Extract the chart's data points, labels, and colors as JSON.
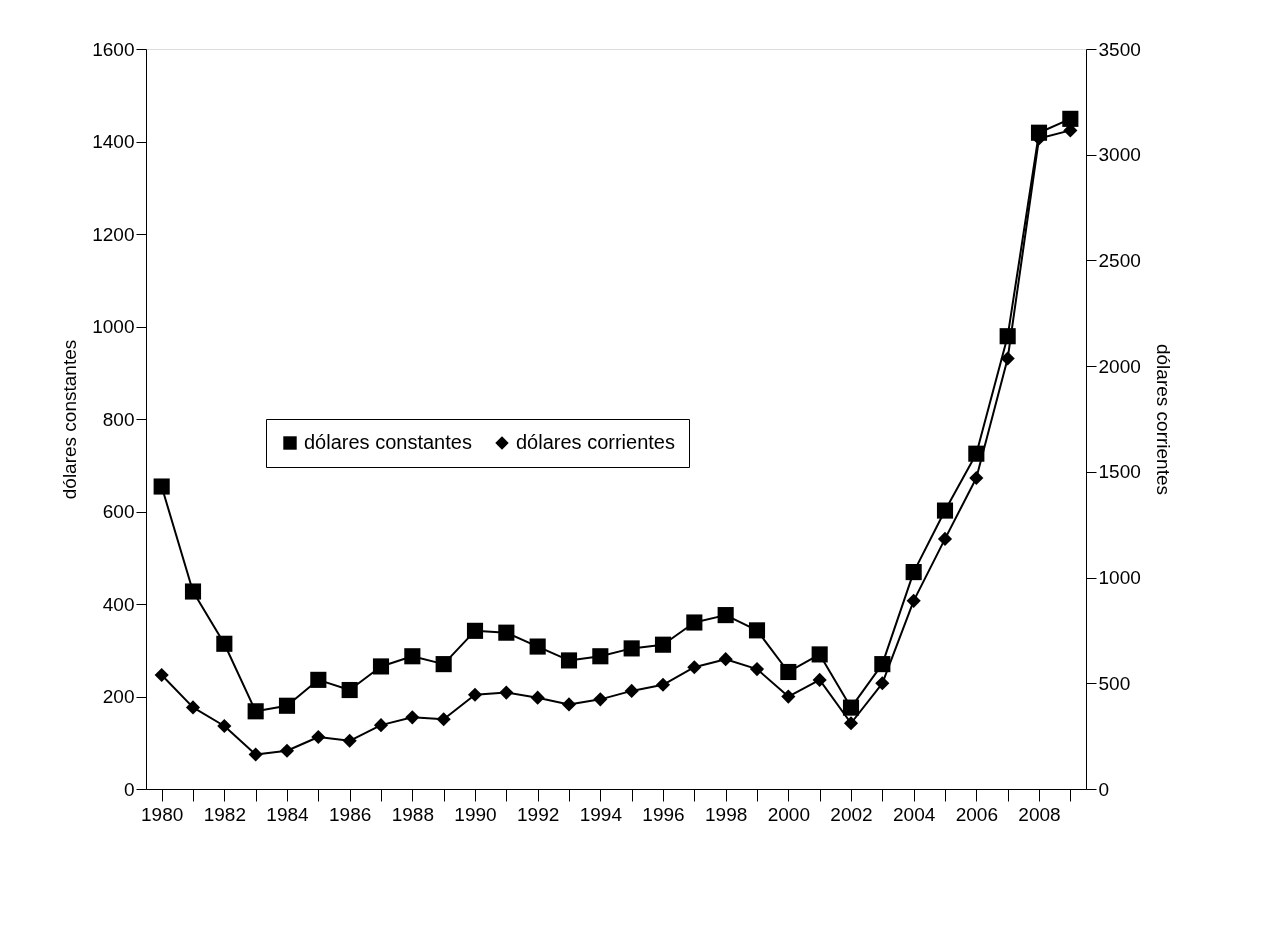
{
  "chart_data": {
    "type": "line",
    "categories": [
      "1980",
      null,
      "1982",
      null,
      "1984",
      null,
      "1986",
      null,
      "1988",
      null,
      "1990",
      null,
      "1992",
      null,
      "1994",
      null,
      "1996",
      null,
      "1998",
      null,
      "2000",
      null,
      "2002",
      null,
      "2004",
      null,
      "2006",
      null,
      "2008",
      null
    ],
    "series": [
      {
        "name": "dólares constantes",
        "color": "#000000",
        "marker": "square",
        "values": [
          654,
          427,
          314,
          168,
          180,
          236,
          214,
          265,
          287,
          270,
          342,
          338,
          308,
          278,
          287,
          304,
          312,
          360,
          376,
          343,
          253,
          291,
          176,
          270,
          469,
          602,
          725,
          979,
          1419,
          1449
        ]
      },
      {
        "name": "dólares corrientes",
        "color": "#000000",
        "marker": "diamond",
        "axis": "y2",
        "values": [
          539,
          386,
          298,
          163,
          181,
          246,
          228,
          302,
          339,
          330,
          446,
          456,
          432,
          400,
          424,
          464,
          493,
          576,
          614,
          567,
          437,
          516,
          311,
          500,
          890,
          1183,
          1471,
          2036,
          3077,
          3115
        ]
      }
    ],
    "ylabel": "dólares constantes",
    "y2label": "dólares corrientes",
    "ylim": [
      0,
      1600
    ],
    "yticks": [
      0,
      200,
      400,
      600,
      800,
      1000,
      1200,
      1400,
      1600
    ],
    "y2lim": [
      0,
      3500
    ],
    "y2ticks": [
      0,
      500,
      1000,
      1500,
      2000,
      2500,
      3000,
      3500
    ],
    "legend": "left",
    "grid": false,
    "line_style": "solid"
  }
}
